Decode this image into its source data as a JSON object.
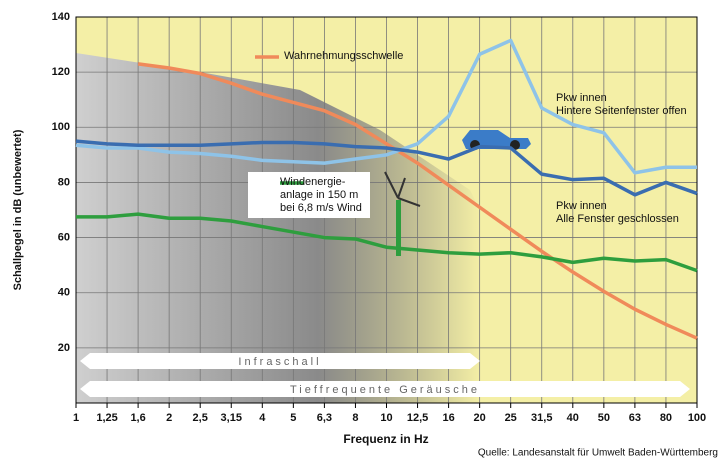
{
  "chart_data": {
    "type": "line",
    "y_label": "Schallpegel in dB (unbewertet)",
    "x_label": "Frequenz in Hz",
    "source": "Quelle: Landesanstalt für Umwelt Baden-Württemberg",
    "categories": [
      "1",
      "1,25",
      "1,6",
      "2",
      "2,5",
      "3,15",
      "4",
      "5",
      "6,3",
      "8",
      "10",
      "12,5",
      "16",
      "20",
      "25",
      "31,5",
      "40",
      "50",
      "63",
      "80",
      "100"
    ],
    "ylim": [
      0,
      140
    ],
    "yticks": [
      20,
      40,
      60,
      80,
      100,
      120,
      140
    ],
    "grid": true,
    "series": [
      {
        "name": "Wahrnehmungsschwelle",
        "color": "#f08a5a",
        "values": [
          null,
          null,
          123,
          121.5,
          119.5,
          116,
          112,
          109,
          106,
          101,
          94,
          87,
          79,
          71,
          63,
          55,
          47.5,
          40.5,
          34,
          28.5,
          23.5
        ]
      },
      {
        "name": "Pkw innen\nHintere Seitenfenster offen",
        "color": "#8ec3e8",
        "values": [
          93.5,
          92.5,
          92.5,
          91,
          90.5,
          89.5,
          88,
          87.5,
          87,
          88.5,
          90,
          94,
          104,
          126.5,
          131.5,
          107,
          101,
          98,
          83.5,
          85.5,
          85.5
        ]
      },
      {
        "name": "Pkw innen\nAlle Fenster geschlossen",
        "color": "#3a6db0",
        "values": [
          95,
          94,
          93.5,
          93.5,
          93.5,
          94,
          94.5,
          94.5,
          94,
          93,
          92.5,
          91,
          88.5,
          93,
          92.5,
          83,
          81,
          81.5,
          75.5,
          80,
          76
        ]
      },
      {
        "name": "Windenergie-\nanlage in 150 m\nbei 6,8 m/s Wind",
        "color": "#2e9e3e",
        "values": [
          67.5,
          67.5,
          68.5,
          67,
          67,
          66,
          64,
          62,
          60,
          59.5,
          56.5,
          55.5,
          54.5,
          54,
          54.5,
          53,
          51,
          52.5,
          51.5,
          52,
          48
        ]
      }
    ],
    "bands": [
      "Infraschall",
      "Tieffrequente Geräusche"
    ]
  }
}
